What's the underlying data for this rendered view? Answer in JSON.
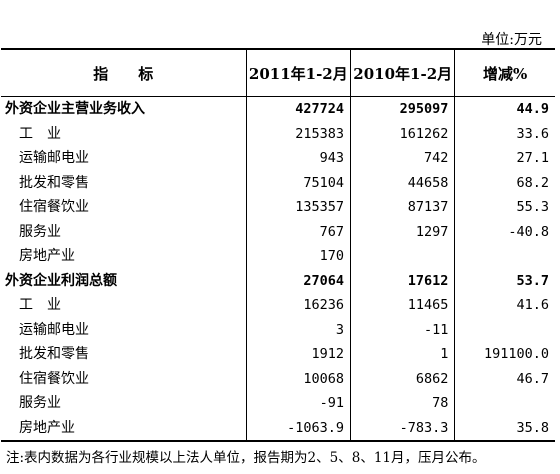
{
  "unit_label": "单位:万元",
  "header": {
    "indicator": "指　　标",
    "col_2011": "2011年1-2月",
    "col_2010": "2010年1-2月",
    "col_change": "增减%"
  },
  "rows": [
    {
      "type": "section",
      "label": "外资企业主营业务收入",
      "v2011": "427724",
      "v2010": "295097",
      "change": "44.9"
    },
    {
      "type": "item",
      "label": "工　业",
      "v2011": "215383",
      "v2010": "161262",
      "change": "33.6"
    },
    {
      "type": "item",
      "label": "运输邮电业",
      "v2011": "943",
      "v2010": "742",
      "change": "27.1"
    },
    {
      "type": "item",
      "label": "批发和零售",
      "v2011": "75104",
      "v2010": "44658",
      "change": "68.2"
    },
    {
      "type": "item",
      "label": "住宿餐饮业",
      "v2011": "135357",
      "v2010": "87137",
      "change": "55.3"
    },
    {
      "type": "item",
      "label": "服务业",
      "v2011": "767",
      "v2010": "1297",
      "change": "-40.8"
    },
    {
      "type": "item",
      "label": "房地产业",
      "v2011": "170",
      "v2010": "",
      "change": ""
    },
    {
      "type": "section",
      "label": "外资企业利润总额",
      "v2011": "27064",
      "v2010": "17612",
      "change": "53.7"
    },
    {
      "type": "item",
      "label": "工　业",
      "v2011": "16236",
      "v2010": "11465",
      "change": "41.6"
    },
    {
      "type": "item",
      "label": "运输邮电业",
      "v2011": "3",
      "v2010": "-11",
      "change": ""
    },
    {
      "type": "item",
      "label": "批发和零售",
      "v2011": "1912",
      "v2010": "1",
      "change": "191100.0"
    },
    {
      "type": "item",
      "label": "住宿餐饮业",
      "v2011": "10068",
      "v2010": "6862",
      "change": "46.7"
    },
    {
      "type": "item",
      "label": "服务业",
      "v2011": "-91",
      "v2010": "78",
      "change": ""
    },
    {
      "type": "item",
      "label": "房地产业",
      "v2011": "-1063.9",
      "v2010": "-783.3",
      "change": "35.8"
    }
  ],
  "footnote": "注:表内数据为各行业规模以上法人单位，报告期为2、5、8、11月，压月公布。"
}
